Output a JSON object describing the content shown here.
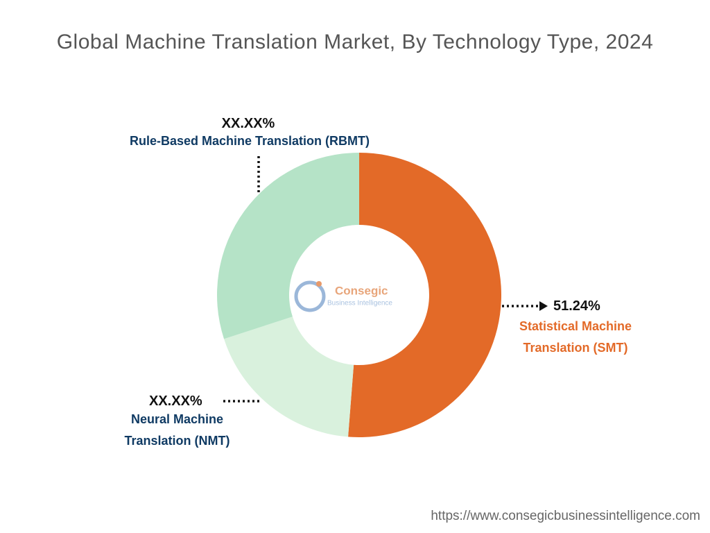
{
  "chart_data": {
    "type": "donut",
    "title": "Global Machine Translation Market, By Technology Type, 2024",
    "categories": [
      "Statistical Machine Translation (SMT)",
      "Neural Machine Translation (NMT)",
      "Rule-Based Machine Translation (RBMT)"
    ],
    "values": [
      51.24,
      18.76,
      30.0
    ],
    "value_labels": [
      "51.24%",
      "XX.XX%",
      "XX.XX%"
    ],
    "colors": [
      "#e36a28",
      "#d9f1dd",
      "#b5e3c7"
    ],
    "watermark": [
      "Consegic",
      "Business Intelligence"
    ],
    "source": "https://www.consegicbusinessintelligence.com"
  }
}
